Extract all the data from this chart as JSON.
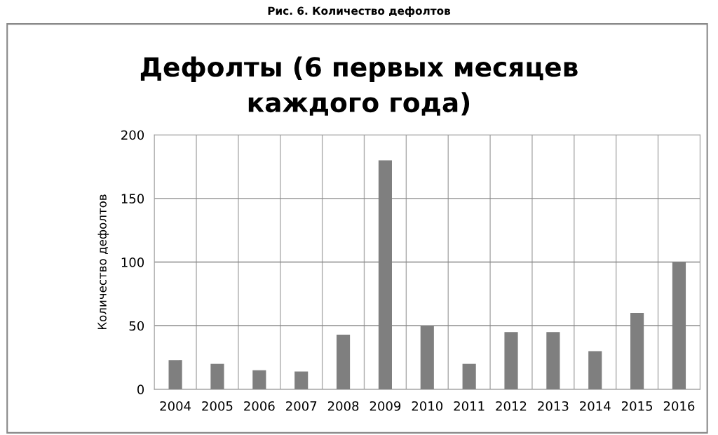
{
  "chart_data": {
    "type": "bar",
    "title": "Дефолты (6 первых месяцев\nкаждого года)",
    "ylabel": "Количество дефолтов",
    "annotations": [
      "Рис. 6. Количество дефолтов"
    ],
    "categories": [
      "2004",
      "2005",
      "2006",
      "2007",
      "2008",
      "2009",
      "2010",
      "2011",
      "2012",
      "2013",
      "2014",
      "2015",
      "2016"
    ],
    "values": [
      23,
      20,
      15,
      14,
      43,
      180,
      50,
      20,
      45,
      45,
      30,
      60,
      100
    ],
    "color": "#7f7f7f",
    "ylim": [
      0,
      200
    ],
    "yticks": [
      0,
      50,
      100,
      150,
      200
    ],
    "grid": true
  }
}
